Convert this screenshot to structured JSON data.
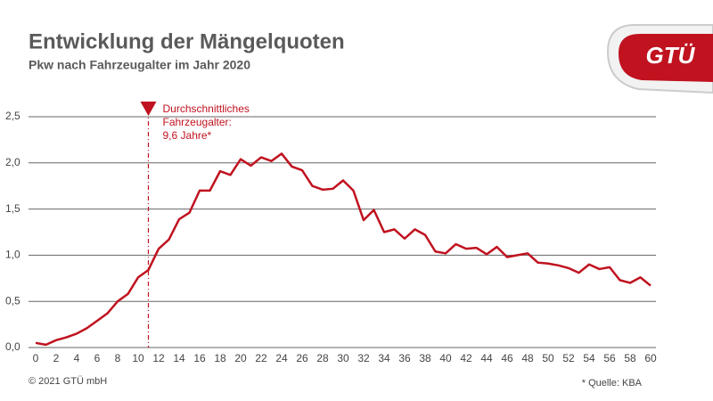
{
  "chart_data": {
    "type": "line",
    "title": "Entwicklung der Mängelquoten",
    "subtitle": "Pkw nach Fahrzeugalter im Jahr 2020",
    "logo": "GTÜ",
    "footer": "© 2021 GTÜ mbH",
    "source": "* Quelle: KBA",
    "color": "#c0121f",
    "x": [
      0,
      1,
      2,
      3,
      4,
      5,
      6,
      7,
      8,
      9,
      10,
      11,
      12,
      13,
      14,
      15,
      16,
      17,
      18,
      19,
      20,
      21,
      22,
      23,
      24,
      25,
      26,
      27,
      28,
      29,
      30,
      31,
      32,
      33,
      34,
      35,
      36,
      37,
      38,
      39,
      40,
      41,
      42,
      43,
      44,
      45,
      46,
      47,
      48,
      49,
      50,
      51,
      52,
      53,
      54,
      55,
      56,
      57,
      58,
      59,
      60
    ],
    "values": [
      0.05,
      0.03,
      0.08,
      0.11,
      0.15,
      0.21,
      0.29,
      0.37,
      0.5,
      0.58,
      0.76,
      0.84,
      1.07,
      1.17,
      1.39,
      1.46,
      1.7,
      1.7,
      1.91,
      1.87,
      2.04,
      1.97,
      2.06,
      2.02,
      2.1,
      1.96,
      1.92,
      1.75,
      1.71,
      1.72,
      1.81,
      1.7,
      1.38,
      1.49,
      1.25,
      1.28,
      1.18,
      1.28,
      1.22,
      1.04,
      1.02,
      1.12,
      1.07,
      1.08,
      1.01,
      1.09,
      0.98,
      1.0,
      1.02,
      0.92,
      0.91,
      0.89,
      0.86,
      0.81,
      0.9,
      0.85,
      0.87,
      0.73,
      0.7,
      0.76,
      0.67
    ],
    "xlim": [
      0,
      60
    ],
    "xticks": [
      0,
      2,
      4,
      6,
      8,
      10,
      12,
      14,
      16,
      18,
      20,
      22,
      24,
      26,
      28,
      30,
      32,
      34,
      36,
      38,
      40,
      42,
      44,
      46,
      48,
      50,
      52,
      54,
      56,
      58,
      60
    ],
    "ylim": [
      0,
      2.5
    ],
    "yticks": [
      {
        "value": 0,
        "label": "0,0"
      },
      {
        "value": 0.5,
        "label": "0,5"
      },
      {
        "value": 1,
        "label": "1,0"
      },
      {
        "value": 1.5,
        "label": "1,5"
      },
      {
        "value": 2,
        "label": "2,0"
      },
      {
        "value": 2.5,
        "label": "2,5"
      }
    ],
    "grid": true,
    "annotation": {
      "x": 11,
      "text": [
        "Durchschnittliches",
        "Fahrzeugalter:",
        "9,6 Jahre*"
      ]
    }
  }
}
